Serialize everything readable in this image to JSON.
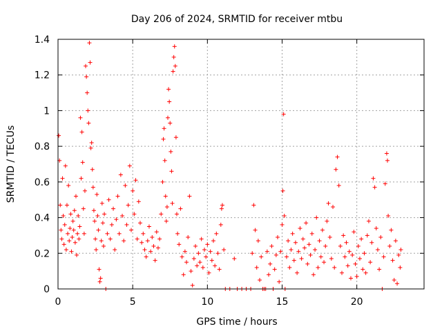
{
  "chart_data": {
    "type": "scatter",
    "title": "Day 206 of 2024, SRMTID for receiver mtbu",
    "xlabel": "GPS time / hours",
    "ylabel": "SRMTID / TECUs",
    "xlim": [
      0,
      24.5
    ],
    "ylim": [
      0,
      1.4
    ],
    "xticks": [
      0,
      5,
      10,
      15,
      20
    ],
    "yticks": [
      0,
      0.2,
      0.4,
      0.6,
      0.8,
      1,
      1.2,
      1.4
    ],
    "xtick_labels": [
      "0",
      "5",
      "10",
      "15",
      "20"
    ],
    "ytick_labels": [
      "0",
      "0.2",
      "0.4",
      "0.6",
      "0.8",
      "1",
      "1.2",
      "1.4"
    ],
    "grid": true,
    "marker": "+",
    "color": "#ff0000",
    "series": [
      {
        "name": "SRMTID",
        "points": [
          [
            0.05,
            0.86
          ],
          [
            0.1,
            0.72
          ],
          [
            0.15,
            0.47
          ],
          [
            0.2,
            0.33
          ],
          [
            0.25,
            0.28
          ],
          [
            0.3,
            0.62
          ],
          [
            0.35,
            0.41
          ],
          [
            0.4,
            0.25
          ],
          [
            0.45,
            0.36
          ],
          [
            0.5,
            0.69
          ],
          [
            0.55,
            0.22
          ],
          [
            0.6,
            0.47
          ],
          [
            0.65,
            0.31
          ],
          [
            0.7,
            0.58
          ],
          [
            0.75,
            0.27
          ],
          [
            0.8,
            0.34
          ],
          [
            0.85,
            0.42
          ],
          [
            0.9,
            0.21
          ],
          [
            0.95,
            0.29
          ],
          [
            1.0,
            0.38
          ],
          [
            1.05,
            0.33
          ],
          [
            1.1,
            0.44
          ],
          [
            1.15,
            0.26
          ],
          [
            1.2,
            0.52
          ],
          [
            1.25,
            0.19
          ],
          [
            1.3,
            0.31
          ],
          [
            1.35,
            0.41
          ],
          [
            1.4,
            0.28
          ],
          [
            1.45,
            0.35
          ],
          [
            1.5,
            0.96
          ],
          [
            1.55,
            0.62
          ],
          [
            1.6,
            0.88
          ],
          [
            1.65,
            0.71
          ],
          [
            1.7,
            0.45
          ],
          [
            1.75,
            0.31
          ],
          [
            1.8,
            0.55
          ],
          [
            1.85,
            1.25
          ],
          [
            1.9,
            1.19
          ],
          [
            1.95,
            1.1
          ],
          [
            2.0,
            1.0
          ],
          [
            2.05,
            0.93
          ],
          [
            2.1,
            1.38
          ],
          [
            2.15,
            1.27
          ],
          [
            2.2,
            0.79
          ],
          [
            2.25,
            0.82
          ],
          [
            2.3,
            0.67
          ],
          [
            2.35,
            0.57
          ],
          [
            2.4,
            0.44
          ],
          [
            2.45,
            0.38
          ],
          [
            2.5,
            0.28
          ],
          [
            2.55,
            0.22
          ],
          [
            2.6,
            0.53
          ],
          [
            2.65,
            0.41
          ],
          [
            2.7,
            0.33
          ],
          [
            2.75,
            0.11
          ],
          [
            2.8,
            0.04
          ],
          [
            2.85,
            0.06
          ],
          [
            2.9,
            0.27
          ],
          [
            2.95,
            0.48
          ],
          [
            3.0,
            0.37
          ],
          [
            3.05,
            0.24
          ],
          [
            3.1,
            0.42
          ],
          [
            3.2,
            0.0
          ],
          [
            3.3,
            0.31
          ],
          [
            3.4,
            0.5
          ],
          [
            3.5,
            0.28
          ],
          [
            3.6,
            0.36
          ],
          [
            3.7,
            0.45
          ],
          [
            3.8,
            0.22
          ],
          [
            3.9,
            0.39
          ],
          [
            4.0,
            0.52
          ],
          [
            4.1,
            0.31
          ],
          [
            4.2,
            0.64
          ],
          [
            4.3,
            0.41
          ],
          [
            4.4,
            0.27
          ],
          [
            4.5,
            0.58
          ],
          [
            4.6,
            0.36
          ],
          [
            4.7,
            0.47
          ],
          [
            4.8,
            0.69
          ],
          [
            4.9,
            0.33
          ],
          [
            5.0,
            0.55
          ],
          [
            5.1,
            0.42
          ],
          [
            5.2,
            0.61
          ],
          [
            5.3,
            0.28
          ],
          [
            5.4,
            0.49
          ],
          [
            5.5,
            0.37
          ],
          [
            5.6,
            0.26
          ],
          [
            5.7,
            0.31
          ],
          [
            5.8,
            0.22
          ],
          [
            5.9,
            0.18
          ],
          [
            6.0,
            0.27
          ],
          [
            6.1,
            0.35
          ],
          [
            6.2,
            0.21
          ],
          [
            6.3,
            0.29
          ],
          [
            6.4,
            0.24
          ],
          [
            6.5,
            0.16
          ],
          [
            6.6,
            0.32
          ],
          [
            6.7,
            0.23
          ],
          [
            6.8,
            0.28
          ],
          [
            6.9,
            0.42
          ],
          [
            7.0,
            0.6
          ],
          [
            7.05,
            0.84
          ],
          [
            7.1,
            0.9
          ],
          [
            7.15,
            0.72
          ],
          [
            7.2,
            0.52
          ],
          [
            7.25,
            0.38
          ],
          [
            7.3,
            0.46
          ],
          [
            7.35,
            0.96
          ],
          [
            7.4,
            1.12
          ],
          [
            7.45,
            1.05
          ],
          [
            7.5,
            0.93
          ],
          [
            7.55,
            0.77
          ],
          [
            7.6,
            0.66
          ],
          [
            7.65,
            0.48
          ],
          [
            7.7,
            1.22
          ],
          [
            7.75,
            1.3
          ],
          [
            7.8,
            1.36
          ],
          [
            7.85,
            1.25
          ],
          [
            7.9,
            0.85
          ],
          [
            7.95,
            0.42
          ],
          [
            8.0,
            0.31
          ],
          [
            8.1,
            0.25
          ],
          [
            8.2,
            0.45
          ],
          [
            8.3,
            0.18
          ],
          [
            8.4,
            0.08
          ],
          [
            8.5,
            0.21
          ],
          [
            8.6,
            0.15
          ],
          [
            8.7,
            0.29
          ],
          [
            8.8,
            0.52
          ],
          [
            8.9,
            0.1
          ],
          [
            9.0,
            0.02
          ],
          [
            9.1,
            0.17
          ],
          [
            9.2,
            0.24
          ],
          [
            9.3,
            0.13
          ],
          [
            9.4,
            0.2
          ],
          [
            9.5,
            0.15
          ],
          [
            9.6,
            0.28
          ],
          [
            9.7,
            0.12
          ],
          [
            9.8,
            0.22
          ],
          [
            9.9,
            0.18
          ],
          [
            10.0,
            0.25
          ],
          [
            10.1,
            0.09
          ],
          [
            10.2,
            0.21
          ],
          [
            10.3,
            0.16
          ],
          [
            10.4,
            0.27
          ],
          [
            10.5,
            0.13
          ],
          [
            10.6,
            0.31
          ],
          [
            10.7,
            0.2
          ],
          [
            10.8,
            0.11
          ],
          [
            10.9,
            0.36
          ],
          [
            10.95,
            0.45
          ],
          [
            11.0,
            0.47
          ],
          [
            11.1,
            0.22
          ],
          [
            11.2,
            0.0
          ],
          [
            11.5,
            0.0
          ],
          [
            11.8,
            0.17
          ],
          [
            12.0,
            0.0
          ],
          [
            12.3,
            0.0
          ],
          [
            12.6,
            0.0
          ],
          [
            12.9,
            0.0
          ],
          [
            13.0,
            0.2
          ],
          [
            13.1,
            0.47
          ],
          [
            13.2,
            0.33
          ],
          [
            13.3,
            0.12
          ],
          [
            13.4,
            0.27
          ],
          [
            13.5,
            0.05
          ],
          [
            13.6,
            0.18
          ],
          [
            13.7,
            0.0
          ],
          [
            13.8,
            0.0
          ],
          [
            13.9,
            0.0
          ],
          [
            14.0,
            0.21
          ],
          [
            14.1,
            0.08
          ],
          [
            14.2,
            0.14
          ],
          [
            14.3,
            0.24
          ],
          [
            14.4,
            0.0
          ],
          [
            14.5,
            0.11
          ],
          [
            14.6,
            0.19
          ],
          [
            14.7,
            0.29
          ],
          [
            14.8,
            0.04
          ],
          [
            14.9,
            0.21
          ],
          [
            15.0,
            0.36
          ],
          [
            15.05,
            0.55
          ],
          [
            15.1,
            0.98
          ],
          [
            15.15,
            0.41
          ],
          [
            15.2,
            0.0
          ],
          [
            15.3,
            0.18
          ],
          [
            15.4,
            0.27
          ],
          [
            15.5,
            0.12
          ],
          [
            15.6,
            0.22
          ],
          [
            15.7,
            0.31
          ],
          [
            15.8,
            0.16
          ],
          [
            15.9,
            0.26
          ],
          [
            16.0,
            0.09
          ],
          [
            16.1,
            0.21
          ],
          [
            16.2,
            0.34
          ],
          [
            16.3,
            0.17
          ],
          [
            16.4,
            0.28
          ],
          [
            16.5,
            0.23
          ],
          [
            16.6,
            0.37
          ],
          [
            16.7,
            0.14
          ],
          [
            16.8,
            0.25
          ],
          [
            16.9,
            0.19
          ],
          [
            17.0,
            0.31
          ],
          [
            17.1,
            0.08
          ],
          [
            17.2,
            0.22
          ],
          [
            17.3,
            0.4
          ],
          [
            17.4,
            0.12
          ],
          [
            17.5,
            0.27
          ],
          [
            17.6,
            0.18
          ],
          [
            17.7,
            0.33
          ],
          [
            17.8,
            0.15
          ],
          [
            17.9,
            0.24
          ],
          [
            18.0,
            0.38
          ],
          [
            18.1,
            0.48
          ],
          [
            18.2,
            0.29
          ],
          [
            18.3,
            0.17
          ],
          [
            18.4,
            0.46
          ],
          [
            18.5,
            0.12
          ],
          [
            18.6,
            0.67
          ],
          [
            18.7,
            0.74
          ],
          [
            18.8,
            0.58
          ],
          [
            18.9,
            0.24
          ],
          [
            19.0,
            0.09
          ],
          [
            19.1,
            0.3
          ],
          [
            19.2,
            0.18
          ],
          [
            19.3,
            0.26
          ],
          [
            19.4,
            0.13
          ],
          [
            19.5,
            0.21
          ],
          [
            19.6,
            0.06
          ],
          [
            19.7,
            0.19
          ],
          [
            19.8,
            0.32
          ],
          [
            19.9,
            0.14
          ],
          [
            20.0,
            0.07
          ],
          [
            20.1,
            0.24
          ],
          [
            20.2,
            0.17
          ],
          [
            20.3,
            0.28
          ],
          [
            20.4,
            0.11
          ],
          [
            20.5,
            0.2
          ],
          [
            20.6,
            0.09
          ],
          [
            20.7,
            0.3
          ],
          [
            20.8,
            0.38
          ],
          [
            20.9,
            0.15
          ],
          [
            21.0,
            0.26
          ],
          [
            21.1,
            0.62
          ],
          [
            21.2,
            0.57
          ],
          [
            21.3,
            0.34
          ],
          [
            21.4,
            0.22
          ],
          [
            21.5,
            0.11
          ],
          [
            21.6,
            0.29
          ],
          [
            21.7,
            0.0
          ],
          [
            21.8,
            0.18
          ],
          [
            21.9,
            0.59
          ],
          [
            22.0,
            0.76
          ],
          [
            22.05,
            0.72
          ],
          [
            22.1,
            0.41
          ],
          [
            22.2,
            0.24
          ],
          [
            22.3,
            0.33
          ],
          [
            22.4,
            0.16
          ],
          [
            22.5,
            0.05
          ],
          [
            22.6,
            0.27
          ],
          [
            22.7,
            0.03
          ],
          [
            22.8,
            0.19
          ],
          [
            22.9,
            0.12
          ],
          [
            22.95,
            0.22
          ]
        ]
      }
    ]
  }
}
